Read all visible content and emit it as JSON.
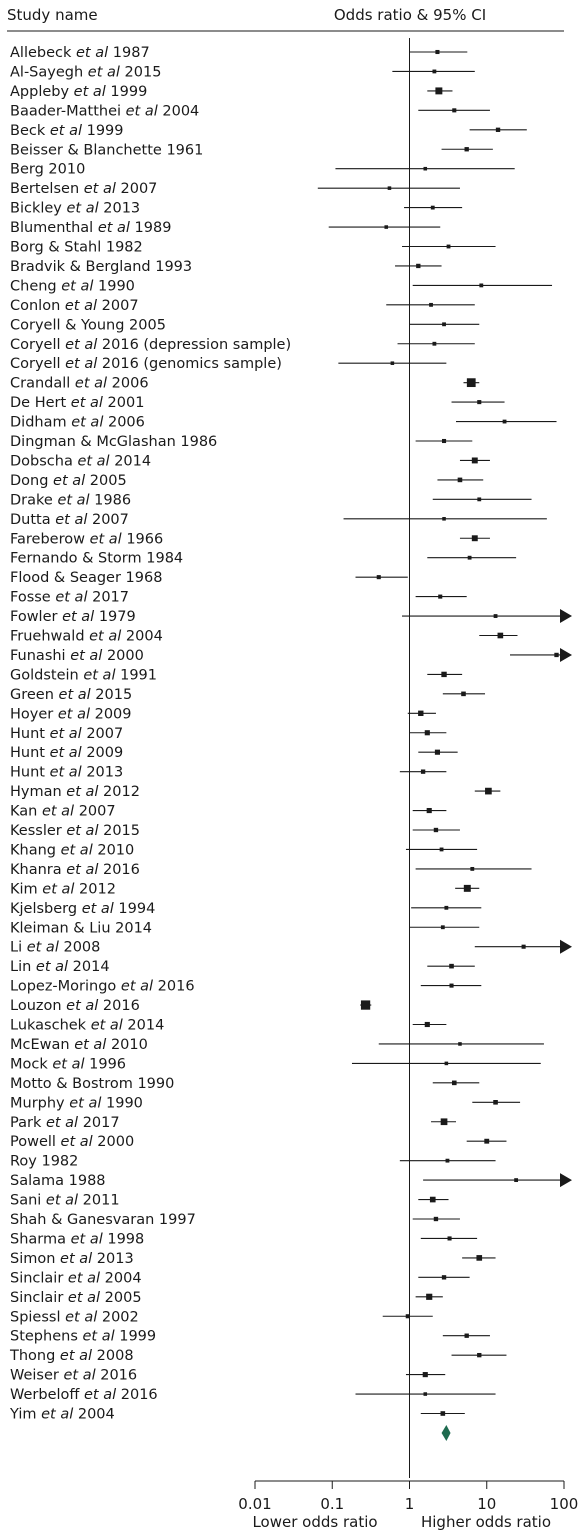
{
  "chart_data": {
    "type": "forest",
    "header_study": "Study name",
    "header_effect": "Odds ratio & 95% CI",
    "x_scale": "log",
    "xlim": [
      0.01,
      100
    ],
    "xticks": [
      "0.01",
      "0.1",
      "1",
      "10",
      "100"
    ],
    "xlabel_left": "Lower odds ratio",
    "xlabel_right": "Higher odds ratio",
    "studies": [
      {
        "name": "Allebeck ",
        "em": "et al",
        "tail": " 1987",
        "or": 2.3,
        "lo": 1.0,
        "hi": 5.6,
        "w": 0.8
      },
      {
        "name": "Al-Sayegh ",
        "em": "et al",
        "tail": " 2015",
        "or": 2.1,
        "lo": 0.6,
        "hi": 7.0,
        "w": 0.7
      },
      {
        "name": "Appleby ",
        "em": "et al",
        "tail": " 1999",
        "or": 2.4,
        "lo": 1.7,
        "hi": 3.6,
        "w": 1.9
      },
      {
        "name": "Baader-Matthei ",
        "em": "et al",
        "tail": " 2004",
        "or": 3.8,
        "lo": 1.3,
        "hi": 11.0,
        "w": 0.8
      },
      {
        "name": "Beck ",
        "em": "et al",
        "tail": " 1999",
        "or": 14.0,
        "lo": 6.0,
        "hi": 33.0,
        "w": 0.9
      },
      {
        "name": "Beisser & Blanchette 1961",
        "em": "",
        "tail": "",
        "or": 5.5,
        "lo": 2.6,
        "hi": 12.0,
        "w": 0.9
      },
      {
        "name": "Berg 2010",
        "em": "",
        "tail": "",
        "or": 1.6,
        "lo": 0.11,
        "hi": 23.0,
        "w": 0.6
      },
      {
        "name": "Bertelsen ",
        "em": "et al",
        "tail": " 2007",
        "or": 0.55,
        "lo": 0.065,
        "hi": 4.5,
        "w": 0.6
      },
      {
        "name": "Bickley ",
        "em": "et al",
        "tail": " 2013",
        "or": 2.0,
        "lo": 0.85,
        "hi": 4.8,
        "w": 0.7
      },
      {
        "name": "Blumenthal ",
        "em": "et al",
        "tail": " 1989",
        "or": 0.5,
        "lo": 0.09,
        "hi": 2.5,
        "w": 0.6
      },
      {
        "name": "Borg & Stahl 1982",
        "em": "",
        "tail": "",
        "or": 3.2,
        "lo": 0.8,
        "hi": 13.0,
        "w": 0.7
      },
      {
        "name": "Bradvik & Bergland 1993",
        "em": "",
        "tail": "",
        "or": 1.3,
        "lo": 0.65,
        "hi": 2.6,
        "w": 0.9
      },
      {
        "name": "Cheng ",
        "em": "et al",
        "tail": " 1990",
        "or": 8.5,
        "lo": 1.1,
        "hi": 70.0,
        "w": 0.7
      },
      {
        "name": "Conlon ",
        "em": "et al",
        "tail": " 2007",
        "or": 1.9,
        "lo": 0.5,
        "hi": 7.0,
        "w": 0.7
      },
      {
        "name": "Coryell & Young 2005",
        "em": "",
        "tail": "",
        "or": 2.8,
        "lo": 1.0,
        "hi": 8.0,
        "w": 0.7
      },
      {
        "name": "Coryell ",
        "em": "et al",
        "tail": " 2016 (depression sample)",
        "or": 2.1,
        "lo": 0.7,
        "hi": 7.0,
        "w": 0.7
      },
      {
        "name": "Coryell ",
        "em": "et al",
        "tail": " 2016 (genomics sample)",
        "or": 0.6,
        "lo": 0.12,
        "hi": 3.0,
        "w": 0.6
      },
      {
        "name": "Crandall ",
        "em": "et al",
        "tail": " 2006",
        "or": 6.3,
        "lo": 5.0,
        "hi": 8.0,
        "w": 2.6
      },
      {
        "name": "De Hert ",
        "em": "et al",
        "tail": " 2001",
        "or": 8.0,
        "lo": 3.5,
        "hi": 17.0,
        "w": 0.8
      },
      {
        "name": "Didham ",
        "em": "et al",
        "tail": " 2006",
        "or": 17.0,
        "lo": 4.0,
        "hi": 80.0,
        "w": 0.7
      },
      {
        "name": "Dingman & McGlashan 1986",
        "em": "",
        "tail": "",
        "or": 2.8,
        "lo": 1.2,
        "hi": 6.5,
        "w": 0.8
      },
      {
        "name": "Dobscha ",
        "em": "et al",
        "tail": " 2014",
        "or": 7.0,
        "lo": 4.5,
        "hi": 11.0,
        "w": 1.5
      },
      {
        "name": "Dong ",
        "em": "et al",
        "tail": " 2005",
        "or": 4.5,
        "lo": 2.3,
        "hi": 9.0,
        "w": 1.0
      },
      {
        "name": "Drake ",
        "em": "et al",
        "tail": " 1986",
        "or": 8.0,
        "lo": 2.0,
        "hi": 38.0,
        "w": 0.7
      },
      {
        "name": "Dutta ",
        "em": "et al",
        "tail": " 2007",
        "or": 2.8,
        "lo": 0.14,
        "hi": 60.0,
        "w": 0.6
      },
      {
        "name": "Fareberow ",
        "em": "et al",
        "tail": " 1966",
        "or": 7.0,
        "lo": 4.5,
        "hi": 11.0,
        "w": 1.5
      },
      {
        "name": "Fernando & Storm 1984",
        "em": "",
        "tail": "",
        "or": 6.0,
        "lo": 1.7,
        "hi": 24.0,
        "w": 0.7
      },
      {
        "name": "Flood & Seager 1968",
        "em": "",
        "tail": "",
        "or": 0.4,
        "lo": 0.2,
        "hi": 0.95,
        "w": 0.8
      },
      {
        "name": "Fosse ",
        "em": "et al",
        "tail": " 2017",
        "or": 2.5,
        "lo": 1.2,
        "hi": 5.5,
        "w": 0.8
      },
      {
        "name": "Fowler ",
        "em": "et al",
        "tail": " 1979",
        "or": 13.0,
        "lo": 0.8,
        "hi": 100.0,
        "w": 0.7,
        "arrow": true
      },
      {
        "name": "Fruehwald ",
        "em": "et al",
        "tail": " 2004",
        "or": 15.0,
        "lo": 8.0,
        "hi": 25.0,
        "w": 1.4
      },
      {
        "name": "Funashi ",
        "em": "et al",
        "tail": " 2000",
        "or": 80.0,
        "lo": 20.0,
        "hi": 100.0,
        "w": 0.9,
        "arrow": true
      },
      {
        "name": "Goldstein ",
        "em": "et al",
        "tail": " 1991",
        "or": 2.8,
        "lo": 1.7,
        "hi": 4.8,
        "w": 1.3
      },
      {
        "name": "Green ",
        "em": "et al",
        "tail": " 2015",
        "or": 5.0,
        "lo": 2.7,
        "hi": 9.5,
        "w": 1.0
      },
      {
        "name": "Hoyer ",
        "em": "et al",
        "tail": " 2009",
        "or": 1.4,
        "lo": 0.95,
        "hi": 2.2,
        "w": 1.3
      },
      {
        "name": "Hunt ",
        "em": "et al",
        "tail": " 2007",
        "or": 1.7,
        "lo": 1.0,
        "hi": 3.0,
        "w": 1.2
      },
      {
        "name": "Hunt ",
        "em": "et al",
        "tail": " 2009",
        "or": 2.3,
        "lo": 1.3,
        "hi": 4.2,
        "w": 1.2
      },
      {
        "name": "Hunt ",
        "em": "et al",
        "tail": " 2013",
        "or": 1.5,
        "lo": 0.75,
        "hi": 3.0,
        "w": 0.9
      },
      {
        "name": "Hyman ",
        "em": "et al",
        "tail": " 2012",
        "or": 10.5,
        "lo": 7.0,
        "hi": 15.0,
        "w": 1.8
      },
      {
        "name": "Kan ",
        "em": "et al",
        "tail": " 2007",
        "or": 1.8,
        "lo": 1.1,
        "hi": 3.0,
        "w": 1.2
      },
      {
        "name": "Kessler ",
        "em": "et al",
        "tail": " 2015",
        "or": 2.2,
        "lo": 1.1,
        "hi": 4.5,
        "w": 0.9
      },
      {
        "name": "Khang ",
        "em": "et al",
        "tail": " 2010",
        "or": 2.6,
        "lo": 0.9,
        "hi": 7.5,
        "w": 0.7
      },
      {
        "name": "Khanra ",
        "em": "et al",
        "tail": " 2016",
        "or": 6.5,
        "lo": 1.2,
        "hi": 38.0,
        "w": 0.7
      },
      {
        "name": "Kim ",
        "em": "et al",
        "tail": " 2012",
        "or": 5.6,
        "lo": 3.9,
        "hi": 8.0,
        "w": 1.9
      },
      {
        "name": "Kjelsberg ",
        "em": "et al",
        "tail": " 1994",
        "or": 3.0,
        "lo": 1.05,
        "hi": 8.5,
        "w": 0.7
      },
      {
        "name": "Kleiman & Liu 2014",
        "em": "",
        "tail": "",
        "or": 2.7,
        "lo": 1.0,
        "hi": 8.0,
        "w": 0.7
      },
      {
        "name": "Li ",
        "em": "et al",
        "tail": " 2008",
        "or": 30.0,
        "lo": 7.0,
        "hi": 100.0,
        "w": 0.8,
        "arrow": true
      },
      {
        "name": "Lin ",
        "em": "et al",
        "tail": " 2014",
        "or": 3.5,
        "lo": 1.7,
        "hi": 7.0,
        "w": 1.0
      },
      {
        "name": "Lopez-Moringo ",
        "em": "et al",
        "tail": " 2016",
        "or": 3.5,
        "lo": 1.4,
        "hi": 8.5,
        "w": 0.8
      },
      {
        "name": "Louzon ",
        "em": "et al",
        "tail": " 2016",
        "or": 0.27,
        "lo": 0.23,
        "hi": 0.32,
        "w": 2.8
      },
      {
        "name": "Lukaschek ",
        "em": "et al",
        "tail": " 2014",
        "or": 1.7,
        "lo": 1.1,
        "hi": 3.0,
        "w": 1.2
      },
      {
        "name": "McEwan ",
        "em": "et al",
        "tail": " 2010",
        "or": 4.5,
        "lo": 0.4,
        "hi": 55.0,
        "w": 0.6
      },
      {
        "name": "Mock ",
        "em": "et al",
        "tail": " 1996",
        "or": 3.0,
        "lo": 0.18,
        "hi": 50.0,
        "w": 0.6
      },
      {
        "name": "Motto & Bostrom 1990",
        "em": "",
        "tail": "",
        "or": 3.8,
        "lo": 2.0,
        "hi": 8.0,
        "w": 1.0
      },
      {
        "name": "Murphy ",
        "em": "et al",
        "tail": " 1990",
        "or": 13.0,
        "lo": 6.5,
        "hi": 27.0,
        "w": 1.0
      },
      {
        "name": "Park ",
        "em": "et al",
        "tail": " 2017",
        "or": 2.8,
        "lo": 1.9,
        "hi": 4.0,
        "w": 1.8
      },
      {
        "name": "Powell ",
        "em": "et al",
        "tail": " 2000",
        "or": 10.0,
        "lo": 5.5,
        "hi": 18.0,
        "w": 1.1
      },
      {
        "name": "Roy 1982",
        "em": "",
        "tail": "",
        "or": 3.1,
        "lo": 0.75,
        "hi": 13.0,
        "w": 0.7
      },
      {
        "name": "Salama 1988",
        "em": "",
        "tail": "",
        "or": 24.0,
        "lo": 1.5,
        "hi": 100.0,
        "w": 0.7,
        "arrow": true
      },
      {
        "name": "Sani ",
        "em": "et al",
        "tail": " 2011",
        "or": 2.0,
        "lo": 1.3,
        "hi": 3.2,
        "w": 1.4
      },
      {
        "name": "Shah & Ganesvaran 1997",
        "em": "",
        "tail": "",
        "or": 2.2,
        "lo": 1.1,
        "hi": 4.5,
        "w": 0.9
      },
      {
        "name": "Sharma ",
        "em": "et al",
        "tail": " 1998",
        "or": 3.3,
        "lo": 1.4,
        "hi": 7.5,
        "w": 0.8
      },
      {
        "name": "Simon ",
        "em": "et al",
        "tail": " 2013",
        "or": 8.0,
        "lo": 4.8,
        "hi": 13.0,
        "w": 1.4
      },
      {
        "name": "Sinclair ",
        "em": "et al",
        "tail": " 2004",
        "or": 2.8,
        "lo": 1.3,
        "hi": 6.0,
        "w": 0.9
      },
      {
        "name": "Sinclair ",
        "em": "et al",
        "tail": " 2005",
        "or": 1.8,
        "lo": 1.2,
        "hi": 2.7,
        "w": 1.6
      },
      {
        "name": "Spiessl ",
        "em": "et al",
        "tail": " 2002",
        "or": 0.95,
        "lo": 0.45,
        "hi": 2.0,
        "w": 0.8
      },
      {
        "name": "Stephens ",
        "em": "et al",
        "tail": " 1999",
        "or": 5.5,
        "lo": 2.7,
        "hi": 11.0,
        "w": 0.9
      },
      {
        "name": "Thong ",
        "em": "et al",
        "tail": " 2008",
        "or": 8.0,
        "lo": 3.5,
        "hi": 18.0,
        "w": 0.9
      },
      {
        "name": "Weiser ",
        "em": "et al",
        "tail": " 2016",
        "or": 1.6,
        "lo": 0.9,
        "hi": 2.9,
        "w": 1.2
      },
      {
        "name": "Werbeloff ",
        "em": "et al",
        "tail": " 2016",
        "or": 1.6,
        "lo": 0.2,
        "hi": 13.0,
        "w": 0.6
      },
      {
        "name": "Yim ",
        "em": "et al",
        "tail": " 2004",
        "or": 2.7,
        "lo": 1.4,
        "hi": 5.2,
        "w": 1.0
      }
    ],
    "pooled": {
      "or": 3.0,
      "lo": 2.6,
      "hi": 3.4
    },
    "colors": {
      "ink": "#1a1a1a",
      "pooled": "#1e6b4f"
    }
  }
}
